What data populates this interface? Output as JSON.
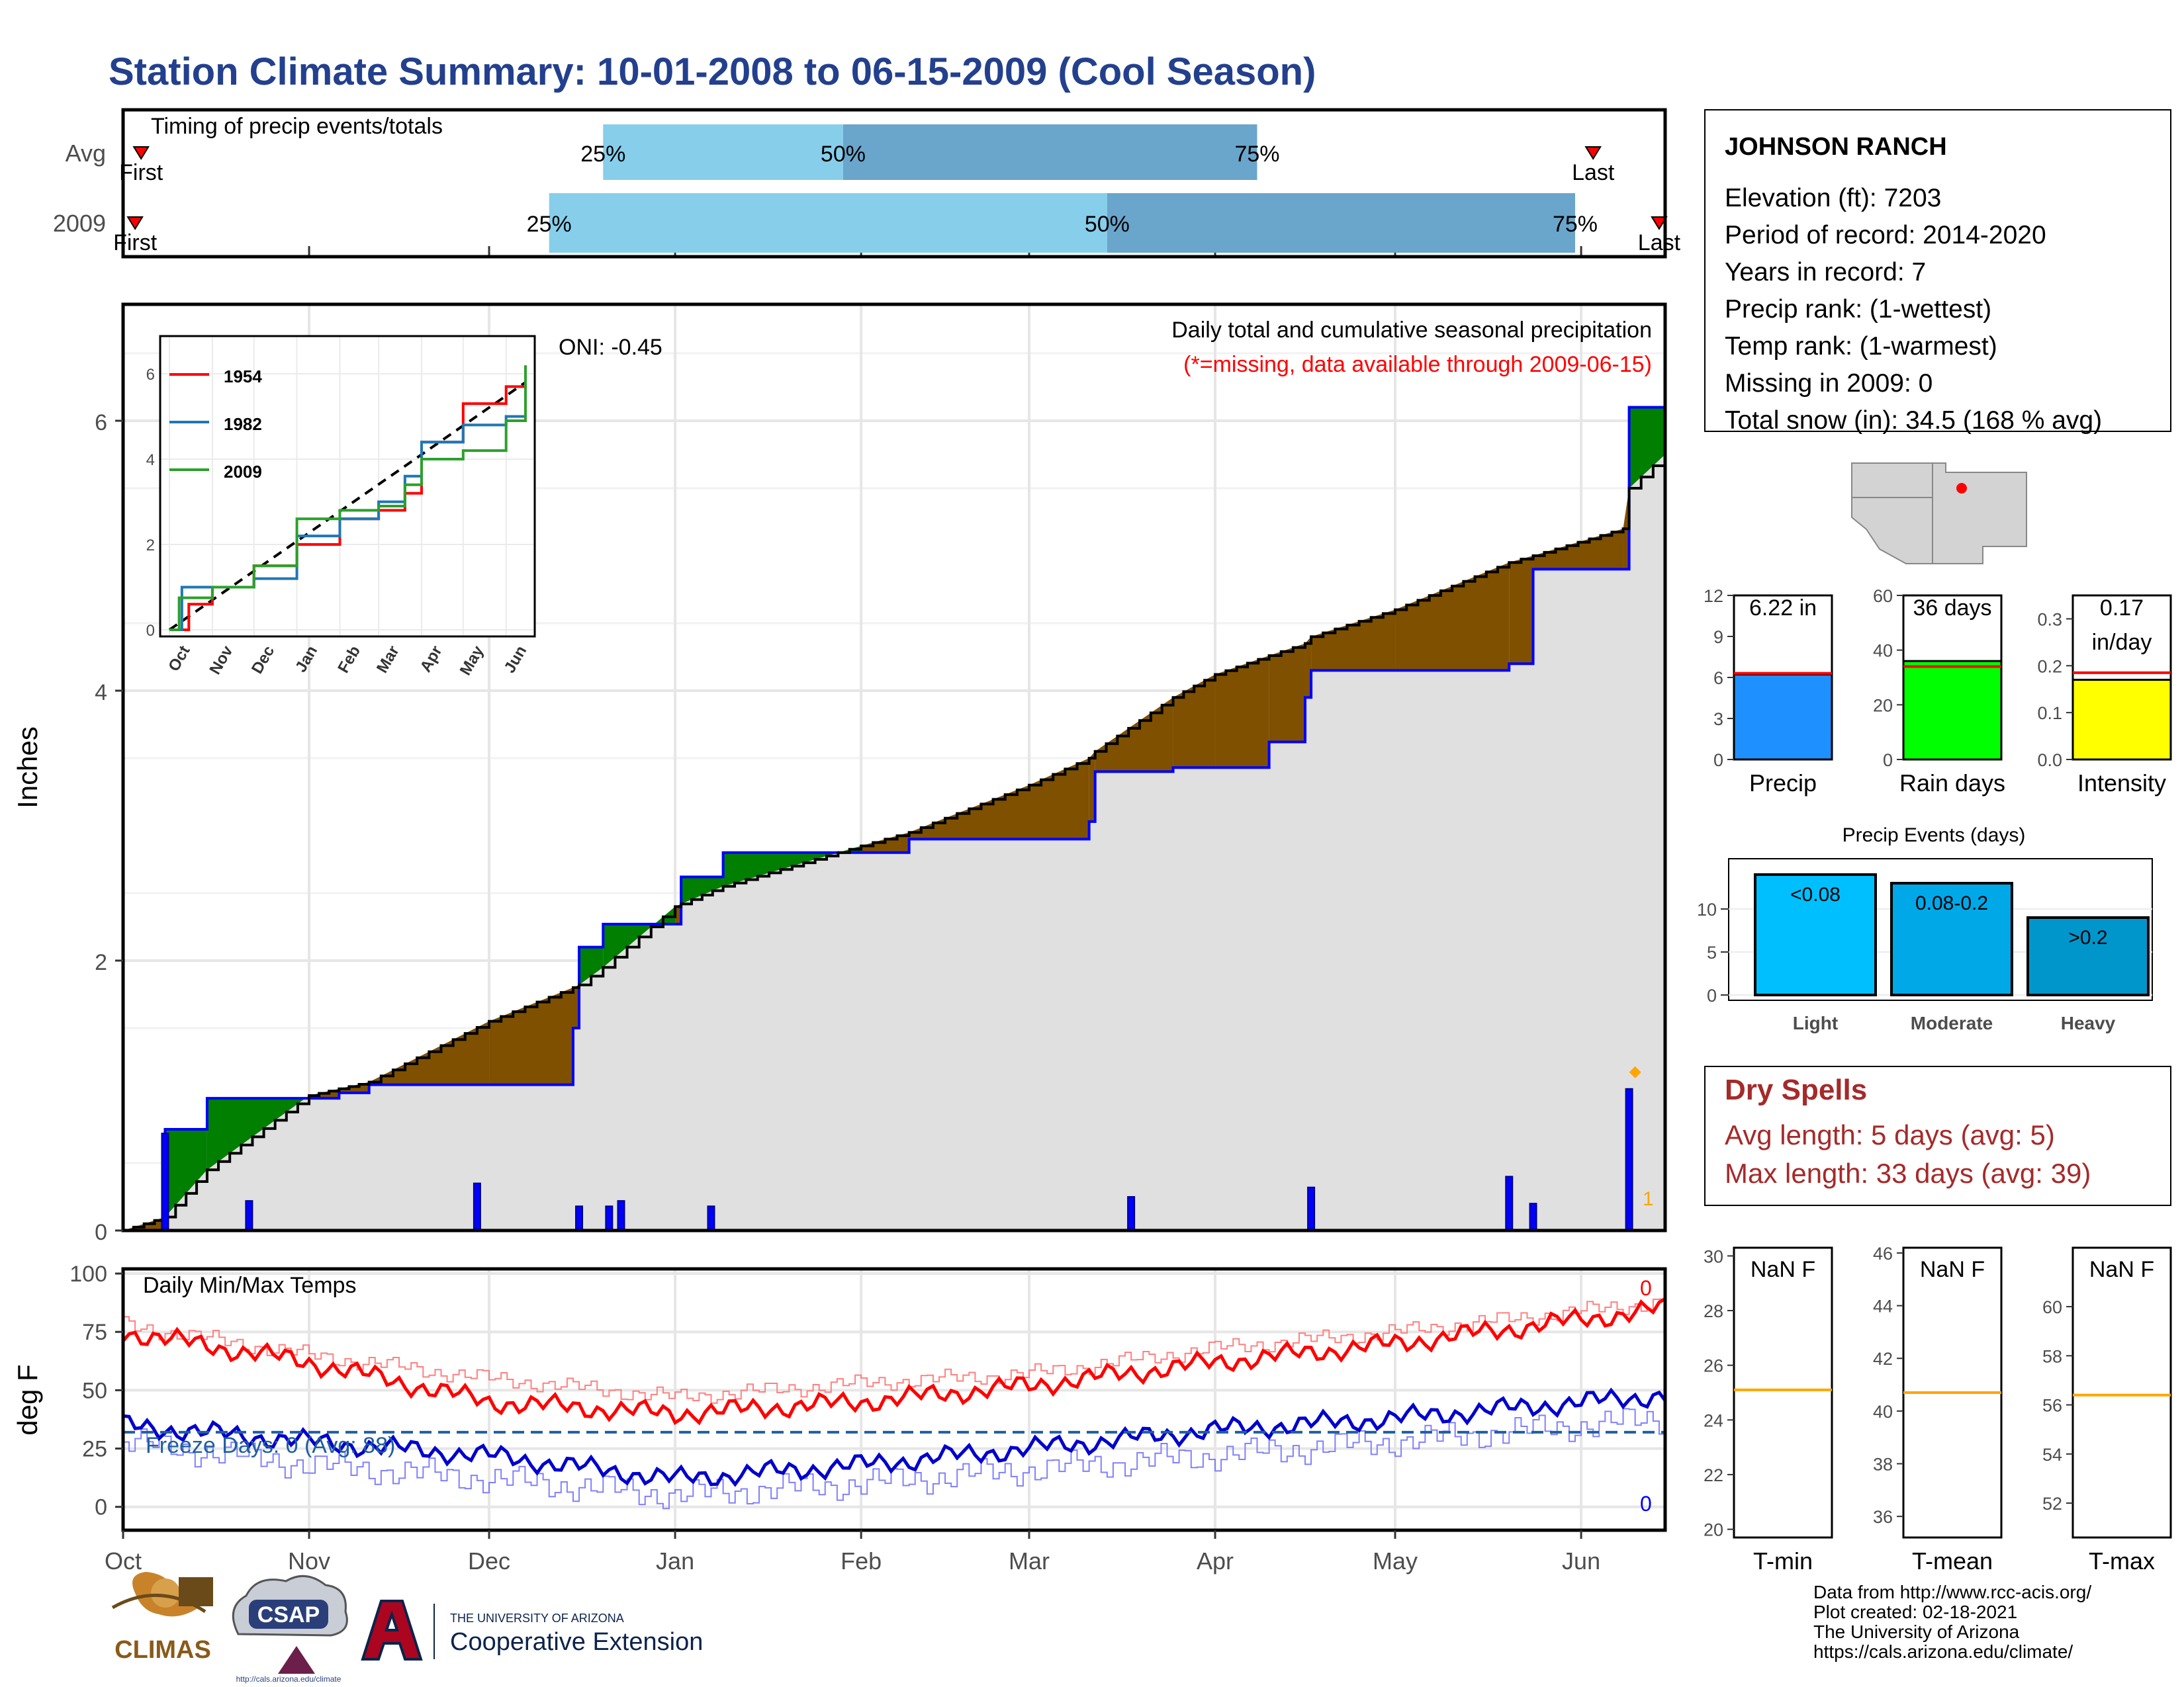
{
  "title": "Station Climate Summary: 10-01-2008 to 06-15-2009 (Cool Season)",
  "colors": {
    "title": "#23408e",
    "light_blue": "#87ceeb",
    "steel_blue": "#6aa5cb",
    "wet_fill": "#007f00",
    "dry_fill": "#7f5000",
    "cum_fill": "#e0e0e0",
    "daily_bar": "#0000ff",
    "red": "#ff0000",
    "maroon": "#a52a2a",
    "orange": "#ffa500"
  },
  "timing": {
    "panel_label": "Timing of precip events/totals",
    "rows": [
      {
        "label": "Avg",
        "first_label": "First",
        "last_label": "Last",
        "p25": "25%",
        "p50": "50%",
        "p75": "75%",
        "first_day": 3,
        "p25_day": 80,
        "p50_day": 120,
        "p75_day": 189,
        "last_day": 245
      },
      {
        "label": "2009",
        "first_label": "First",
        "last_label": "Last",
        "p25": "25%",
        "p50": "50%",
        "p75": "75%",
        "first_day": 2,
        "p25_day": 71,
        "p50_day": 164,
        "p75_day": 242,
        "last_day": 256
      }
    ]
  },
  "main": {
    "ylabel": "Inches",
    "oni": "ONI: -0.45",
    "note1": "Daily total and cumulative seasonal precipitation",
    "note2": "(*=missing, data available through 2009-06-15)",
    "snow_marker_label": "1",
    "months": [
      "Oct",
      "Nov",
      "Dec",
      "Jan",
      "Feb",
      "Mar",
      "Apr",
      "May",
      "Jun"
    ],
    "yticks": [
      "0",
      "2",
      "4",
      "6"
    ]
  },
  "inset": {
    "legend": [
      {
        "name": "1954",
        "color": "#ff0000"
      },
      {
        "name": "1982",
        "color": "#1f77b4"
      },
      {
        "name": "2009",
        "color": "#2ca02c"
      }
    ],
    "yticks": [
      "0",
      "2",
      "4",
      "6"
    ],
    "months": [
      "Oct",
      "Nov",
      "Dec",
      "Jan",
      "Feb",
      "Mar",
      "Apr",
      "May",
      "Jun"
    ]
  },
  "temps": {
    "ylabel": "deg F",
    "label": "Daily Min/Max Temps",
    "freeze": "Freeze Days: 0 (Avg: 88)",
    "max_count": "0",
    "min_count": "0",
    "yticks": [
      "0",
      "25",
      "50",
      "75",
      "100"
    ]
  },
  "station": {
    "name": "JOHNSON RANCH",
    "lines": [
      "Elevation (ft): 7203",
      "Period of record: 2014-2020",
      "Years in record: 7",
      "Precip rank:  (1-wettest)",
      "Temp rank:  (1-warmest)",
      "Missing in 2009: 0",
      "Total snow (in): 34.5 (168 % avg)"
    ]
  },
  "small_bars": [
    {
      "label": "Precip",
      "value_label": "6.22 in",
      "value": 6.22,
      "avg": 6.3,
      "ymax": 12,
      "ticks": [
        "0",
        "3",
        "6",
        "9",
        "12"
      ],
      "tick_vals": [
        0,
        3,
        6,
        9,
        12
      ],
      "color": "#1e90ff"
    },
    {
      "label": "Rain days",
      "value_label": "36 days",
      "value": 36,
      "avg": 34,
      "ymax": 60,
      "ticks": [
        "0",
        "20",
        "40",
        "60"
      ],
      "tick_vals": [
        0,
        20,
        40,
        60
      ],
      "color": "#00ff00"
    },
    {
      "label": "Intensity",
      "value_label": "0.17",
      "value_label2": "in/day",
      "value": 0.17,
      "avg": 0.185,
      "ymax": 0.35,
      "ticks": [
        "0.0",
        "0.1",
        "0.2",
        "0.3"
      ],
      "tick_vals": [
        0,
        0.1,
        0.2,
        0.3
      ],
      "color": "#ffff00"
    }
  ],
  "events": {
    "title": "Precip Events (days)",
    "yticks": [
      "0",
      "5",
      "10"
    ],
    "bars": [
      {
        "cat": "Light",
        "label": "<0.08",
        "value": 14,
        "color": "#00bfff"
      },
      {
        "cat": "Moderate",
        "label": "0.08-0.2",
        "value": 13,
        "color": "#00a8e8"
      },
      {
        "cat": "Heavy",
        "label": ">0.2",
        "value": 9,
        "color": "#0096cc"
      }
    ]
  },
  "dry_spells": {
    "title": "Dry Spells",
    "avg": "Avg length: 5 days (avg: 5)",
    "max": "Max length: 33 days (avg: 39)"
  },
  "temp_boxes": [
    {
      "label": "T-min",
      "value": "NaN F",
      "ticks": [
        "20",
        "22",
        "24",
        "26",
        "28",
        "30"
      ],
      "tick_vals": [
        20,
        22,
        24,
        26,
        28,
        30
      ],
      "min": 19.7,
      "max": 30.3,
      "avg": 25.1
    },
    {
      "label": "T-mean",
      "value": "NaN F",
      "ticks": [
        "36",
        "38",
        "40",
        "42",
        "44",
        "46"
      ],
      "tick_vals": [
        36,
        38,
        40,
        42,
        44,
        46
      ],
      "min": 35.2,
      "max": 46.2,
      "avg": 40.7
    },
    {
      "label": "T-max",
      "value": "NaN F",
      "ticks": [
        "52",
        "54",
        "56",
        "58",
        "60"
      ],
      "tick_vals": [
        52,
        54,
        56,
        58,
        60
      ],
      "min": 50.6,
      "max": 62.4,
      "avg": 56.4
    }
  ],
  "credits": [
    "Data from http://www.rcc-acis.org/",
    "Plot created: 02-18-2021",
    "The University of Arizona",
    "https://cals.arizona.edu/climate/"
  ],
  "logos": {
    "climas": "CLIMAS",
    "csap": "CSAP",
    "csap_url": "http://cals.arizona.edu/climate",
    "ua_small": "THE UNIVERSITY OF ARIZONA",
    "ua_big": "Cooperative Extension"
  },
  "chart_data": {
    "type": "area",
    "title": "Daily total and cumulative seasonal precipitation",
    "xlabel": "",
    "ylabel": "Inches",
    "ylim": [
      0,
      6.9
    ],
    "x_dates": [
      "2008-10-01",
      "2008-10-08",
      "2008-10-15",
      "2008-11-01",
      "2008-11-06",
      "2008-11-11",
      "2008-12-01",
      "2008-12-15",
      "2008-12-16",
      "2008-12-20",
      "2009-01-01",
      "2009-01-02",
      "2009-01-09",
      "2009-02-01",
      "2009-02-09",
      "2009-03-01",
      "2009-03-11",
      "2009-03-12",
      "2009-03-25",
      "2009-04-01",
      "2009-04-10",
      "2009-04-16",
      "2009-04-17",
      "2009-05-01",
      "2009-05-20",
      "2009-05-24",
      "2009-06-08",
      "2009-06-09",
      "2009-06-15"
    ],
    "series": [
      {
        "name": "2009",
        "values": [
          0.0,
          0.75,
          0.98,
          0.98,
          1.02,
          1.08,
          1.08,
          1.5,
          2.1,
          2.27,
          2.27,
          2.62,
          2.8,
          2.8,
          2.9,
          2.9,
          3.03,
          3.4,
          3.43,
          3.43,
          3.62,
          3.95,
          4.15,
          4.15,
          4.2,
          4.9,
          4.9,
          6.1,
          6.25
        ]
      },
      {
        "values": [
          0.0,
          0.1,
          0.45,
          1.0,
          1.05,
          1.1,
          1.55,
          1.8,
          1.82,
          1.95,
          2.4,
          2.42,
          2.55,
          2.85,
          2.95,
          3.3,
          3.5,
          3.55,
          3.95,
          4.12,
          4.26,
          4.35,
          4.4,
          4.6,
          4.95,
          5.0,
          5.2,
          5.5,
          5.75
        ]
      }
    ],
    "daily_precip": [
      {
        "date": "2008-10-08",
        "value": 0.72
      },
      {
        "date": "2008-10-22",
        "value": 0.22
      },
      {
        "date": "2008-11-29",
        "value": 0.35
      },
      {
        "date": "2008-12-16",
        "value": 0.18
      },
      {
        "date": "2008-12-21",
        "value": 0.18
      },
      {
        "date": "2008-12-23",
        "value": 0.22
      },
      {
        "date": "2009-01-07",
        "value": 0.18
      },
      {
        "date": "2009-03-18",
        "value": 0.25
      },
      {
        "date": "2009-04-17",
        "value": 0.32
      },
      {
        "date": "2009-05-20",
        "value": 0.4
      },
      {
        "date": "2009-05-24",
        "value": 0.2
      },
      {
        "date": "2009-06-09",
        "value": 1.05
      }
    ],
    "temps": {
      "ylim": [
        -10,
        102
      ],
      "x": [
        "Oct",
        "Nov",
        "Dec",
        "Jan",
        "Feb",
        "Mar",
        "Apr",
        "May",
        "Jun"
      ],
      "max_2009": [
        75,
        62,
        45,
        40,
        45,
        52,
        62,
        70,
        85
      ],
      "max_avg": [
        78,
        65,
        55,
        47,
        53,
        57,
        68,
        75,
        88
      ],
      "min_2009": [
        35,
        28,
        22,
        12,
        18,
        25,
        33,
        38,
        48
      ],
      "min_avg": [
        28,
        18,
        12,
        5,
        10,
        16,
        22,
        28,
        38
      ],
      "freeze_line": 32
    },
    "inset_series": [
      {
        "name": "1954",
        "x": [
          "2008-10-01",
          "2008-10-15",
          "2008-11-01",
          "2008-12-01",
          "2009-01-01",
          "2009-02-01",
          "2009-03-01",
          "2009-03-20",
          "2009-04-01",
          "2009-05-01",
          "2009-06-01",
          "2009-06-15"
        ],
        "values": [
          0.0,
          0.6,
          1.0,
          1.5,
          2.0,
          2.6,
          2.8,
          3.2,
          4.4,
          5.3,
          5.7,
          5.9
        ]
      },
      {
        "name": "1982",
        "x": [
          "2008-10-01",
          "2008-10-10",
          "2008-11-01",
          "2008-12-01",
          "2009-01-01",
          "2009-02-01",
          "2009-03-01",
          "2009-03-20",
          "2009-04-01",
          "2009-05-01",
          "2009-06-01",
          "2009-06-15"
        ],
        "values": [
          0.0,
          1.0,
          1.0,
          1.2,
          2.2,
          2.6,
          3.0,
          3.6,
          4.4,
          4.8,
          5.0,
          5.0
        ]
      },
      {
        "name": "2009",
        "x": [
          "2008-10-01",
          "2008-10-08",
          "2008-11-01",
          "2008-12-01",
          "2009-01-01",
          "2009-02-01",
          "2009-03-01",
          "2009-03-20",
          "2009-04-01",
          "2009-05-01",
          "2009-06-01",
          "2009-06-15"
        ],
        "values": [
          0.0,
          0.75,
          1.0,
          1.5,
          2.6,
          2.8,
          2.9,
          3.4,
          4.0,
          4.2,
          4.9,
          6.2
        ]
      }
    ]
  }
}
